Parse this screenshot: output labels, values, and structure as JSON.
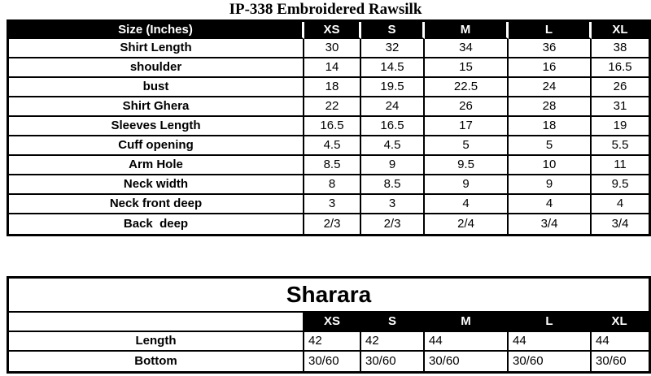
{
  "page_title": "IP-338 Embroidered Rawsilk",
  "colors": {
    "header_bg": "#000000",
    "header_text": "#ffffff",
    "border": "#000000",
    "page_bg": "#ffffff",
    "text": "#000000"
  },
  "size_table": {
    "header_label": "Size (Inches)",
    "columns": [
      "XS",
      "S",
      "M",
      "L",
      "XL"
    ],
    "rows": [
      {
        "label": "Shirt Length",
        "values": [
          "30",
          "32",
          "34",
          "36",
          "38"
        ]
      },
      {
        "label": "shoulder",
        "values": [
          "14",
          "14.5",
          "15",
          "16",
          "16.5"
        ]
      },
      {
        "label": "bust",
        "values": [
          "18",
          "19.5",
          "22.5",
          "24",
          "26"
        ]
      },
      {
        "label": "Shirt Ghera",
        "values": [
          "22",
          "24",
          "26",
          "28",
          "31"
        ]
      },
      {
        "label": "Sleeves Length",
        "values": [
          "16.5",
          "16.5",
          "17",
          "18",
          "19"
        ]
      },
      {
        "label": "Cuff opening",
        "values": [
          "4.5",
          "4.5",
          "5",
          "5",
          "5.5"
        ]
      },
      {
        "label": "Arm Hole",
        "values": [
          "8.5",
          "9",
          "9.5",
          "10",
          "11"
        ]
      },
      {
        "label": "Neck width",
        "values": [
          "8",
          "8.5",
          "9",
          "9",
          "9.5"
        ]
      },
      {
        "label": "Neck front deep",
        "values": [
          "3",
          "3",
          "4",
          "4",
          "4"
        ]
      },
      {
        "label": "Back  deep",
        "values": [
          "2/3",
          "2/3",
          "2/4",
          "3/4",
          "3/4"
        ]
      }
    ]
  },
  "sharara_table": {
    "title": "Sharara",
    "header_label": "",
    "columns": [
      "XS",
      "S",
      "M",
      "L",
      "XL"
    ],
    "rows": [
      {
        "label": "Length",
        "values": [
          "42",
          "42",
          "44",
          "44",
          "44"
        ]
      },
      {
        "label": "Bottom",
        "values": [
          "30/60",
          "30/60",
          "30/60",
          "30/60",
          "30/60"
        ]
      }
    ]
  }
}
